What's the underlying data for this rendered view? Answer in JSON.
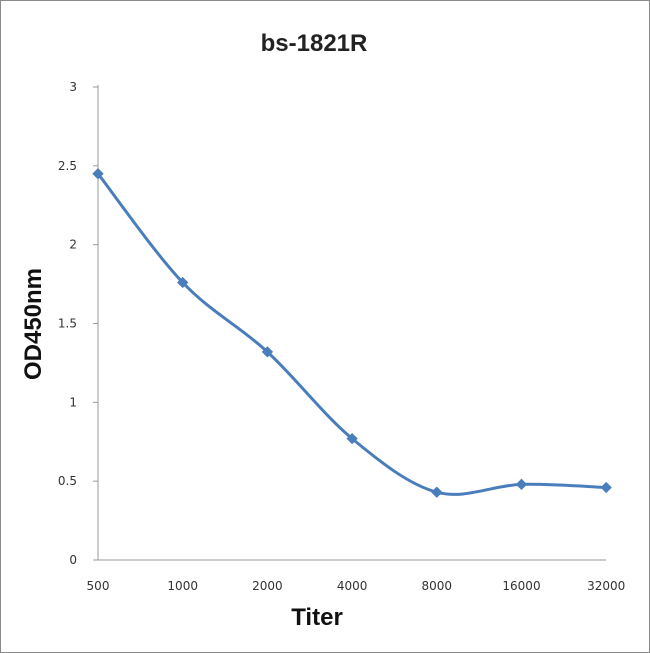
{
  "chart_data": {
    "type": "line",
    "title": "bs-1821R",
    "xlabel": "Titer",
    "ylabel": "OD450nm",
    "categories": [
      "500",
      "1000",
      "2000",
      "4000",
      "8000",
      "16000",
      "32000"
    ],
    "y_ticks": [
      "0",
      "0.5",
      "1",
      "1.5",
      "2",
      "2.5",
      "3"
    ],
    "ylim": [
      0,
      3
    ],
    "grid": false,
    "legend": "none",
    "series": [
      {
        "values": [
          2.45,
          1.76,
          1.32,
          0.77,
          0.43,
          0.48,
          0.46
        ],
        "color": "#4a7ebb"
      }
    ]
  }
}
